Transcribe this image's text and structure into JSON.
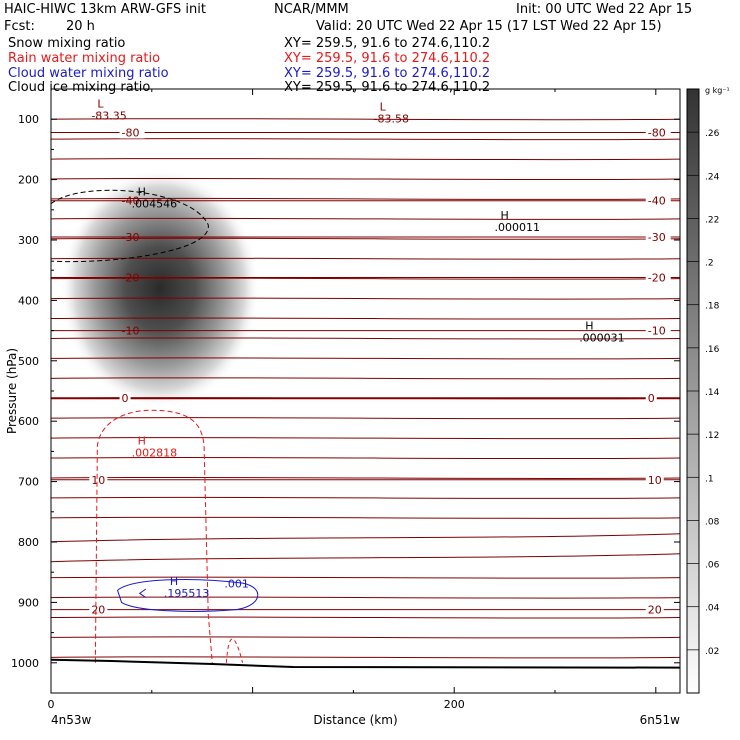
{
  "header": {
    "title_left": "HAIC-HIWC 13km ARW-GFS init",
    "center_label": "NCAR/MMM",
    "init": "Init: 00 UTC Wed 22 Apr 15",
    "fcst_label": "Fcst:",
    "fcst_value": "20 h",
    "valid": "Valid: 20 UTC Wed 22 Apr 15 (17 LST Wed 22 Apr 15)"
  },
  "legend": [
    {
      "name": "Snow mixing ratio",
      "xy": "XY= 259.5, 91.6 to 274.6,110.2",
      "color": "#000000"
    },
    {
      "name": "Rain water mixing ratio",
      "xy": "XY= 259.5, 91.6 to 274.6,110.2",
      "color": "#e8191a"
    },
    {
      "name": "Cloud water mixing ratio",
      "xy": "XY= 259.5, 91.6 to 274.6,110.2",
      "color": "#1a1acc"
    },
    {
      "name": "Cloud ice mixing ratio",
      "xy": "XY= 259.5, 91.6 to 274.6,110.2",
      "color": "#000000"
    }
  ],
  "chart_data": {
    "type": "cross-section",
    "xlabel": "Distance (km)",
    "ylabel": "Pressure (hPa)",
    "x_ticks": [
      0,
      200
    ],
    "x_range_km": [
      0,
      312
    ],
    "y_ticks": [
      100,
      200,
      300,
      400,
      500,
      600,
      700,
      800,
      900,
      1000
    ],
    "y_range_hpa": [
      50,
      1050
    ],
    "left_endpoint": "4n53w",
    "right_endpoint": "6n51w",
    "colorbar": {
      "unit": "g kg⁻¹",
      "ticks": [
        ".02",
        ".04",
        ".06",
        ".08",
        ".1",
        ".12",
        ".14",
        ".16",
        ".18",
        ".2",
        ".22",
        ".24",
        ".26"
      ],
      "max": 0.28
    },
    "temperature_contours": [
      {
        "label": "-80",
        "p": 122
      },
      {
        "label": "-40",
        "p": 235
      },
      {
        "label": "-30",
        "p": 295
      },
      {
        "label": "-20",
        "p": 362
      },
      {
        "label": "-10",
        "p": 450
      },
      {
        "label": "0",
        "p": 562
      },
      {
        "label": "10",
        "p": 697
      },
      {
        "label": "20",
        "p": 912
      }
    ],
    "annotations": [
      {
        "type": "L",
        "value": "-83.35",
        "x_km": 20,
        "p": 97,
        "color": "#800000"
      },
      {
        "type": "L",
        "value": "-83.58",
        "x_km": 160,
        "p": 102,
        "color": "#800000"
      },
      {
        "type": "H",
        "value": ".004546",
        "x_km": 40,
        "p": 243,
        "color": "#000000"
      },
      {
        "type": "H",
        "value": ".000011",
        "x_km": 220,
        "p": 282,
        "color": "#000000"
      },
      {
        "type": "H",
        "value": ".000031",
        "x_km": 262,
        "p": 465,
        "color": "#000000"
      },
      {
        "type": "H",
        "value": ".002818",
        "x_km": 40,
        "p": 655,
        "color": "#e8191a"
      },
      {
        "type": "H",
        "value": ".195513",
        "x_km": 56,
        "p": 888,
        "color": "#1a1acc"
      }
    ],
    "contour_labels": [
      {
        "value": ".001",
        "x_km": 86,
        "p": 875,
        "color": "#1a1acc"
      }
    ],
    "snow_max": 0.28
  }
}
